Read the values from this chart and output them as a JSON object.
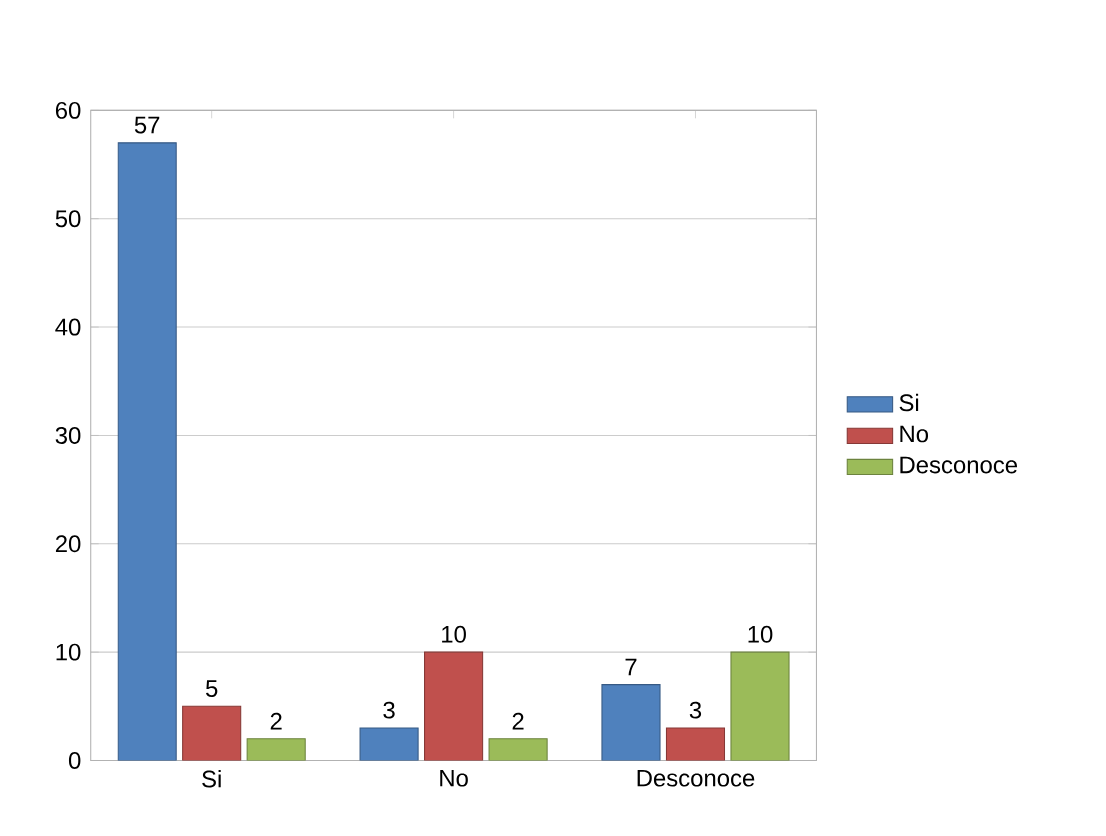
{
  "chart_data": {
    "type": "bar",
    "categories": [
      "Si",
      "No",
      "Desconoce"
    ],
    "series": [
      {
        "name": "Si",
        "color": "#4f81bd",
        "values": [
          57,
          3,
          7
        ]
      },
      {
        "name": "No",
        "color": "#c0504d",
        "values": [
          5,
          10,
          3
        ]
      },
      {
        "name": "Desconoce",
        "color": "#9bbb59",
        "values": [
          2,
          2,
          10
        ]
      }
    ],
    "ylim": [
      0,
      60
    ],
    "yticks": [
      0,
      10,
      20,
      30,
      40,
      50,
      60
    ],
    "grid": "y",
    "data_labels": true,
    "legend": "right"
  }
}
